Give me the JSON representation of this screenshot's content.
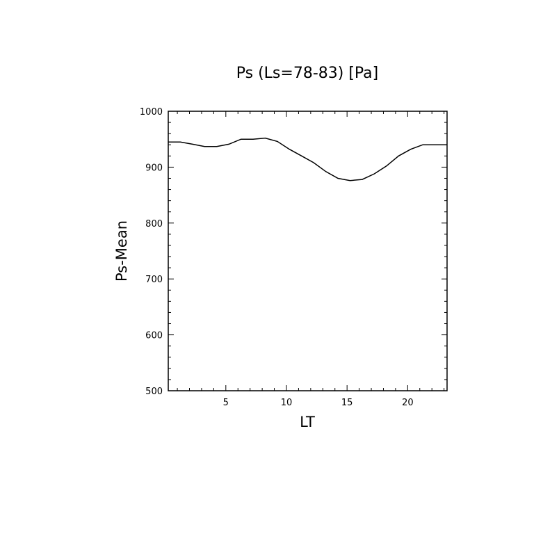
{
  "chart_data": {
    "type": "line",
    "title": "Ps (Ls=78-83) [Pa]",
    "xlabel": "LT",
    "ylabel": "Ps-Mean",
    "xlim": [
      0.25,
      23.25
    ],
    "ylim": [
      500,
      1000
    ],
    "xticks": [
      5,
      10,
      15,
      20
    ],
    "yticks": [
      500,
      600,
      700,
      800,
      900,
      1000
    ],
    "grid": false,
    "series": [
      {
        "x": [
          0.25,
          1.25,
          2.25,
          3.25,
          4.25,
          5.25,
          6.25,
          7.25,
          8.25,
          9.25,
          10.25,
          11.25,
          12.25,
          13.25,
          14.25,
          15.25,
          16.25,
          17.25,
          18.25,
          19.25,
          20.25,
          21.25,
          22.25,
          23.25
        ],
        "values": [
          945,
          945,
          941,
          937,
          937,
          941,
          950,
          950,
          952,
          946,
          932,
          920,
          908,
          892,
          880,
          876,
          878,
          888,
          902,
          920,
          932,
          940,
          940,
          940
        ]
      }
    ]
  }
}
